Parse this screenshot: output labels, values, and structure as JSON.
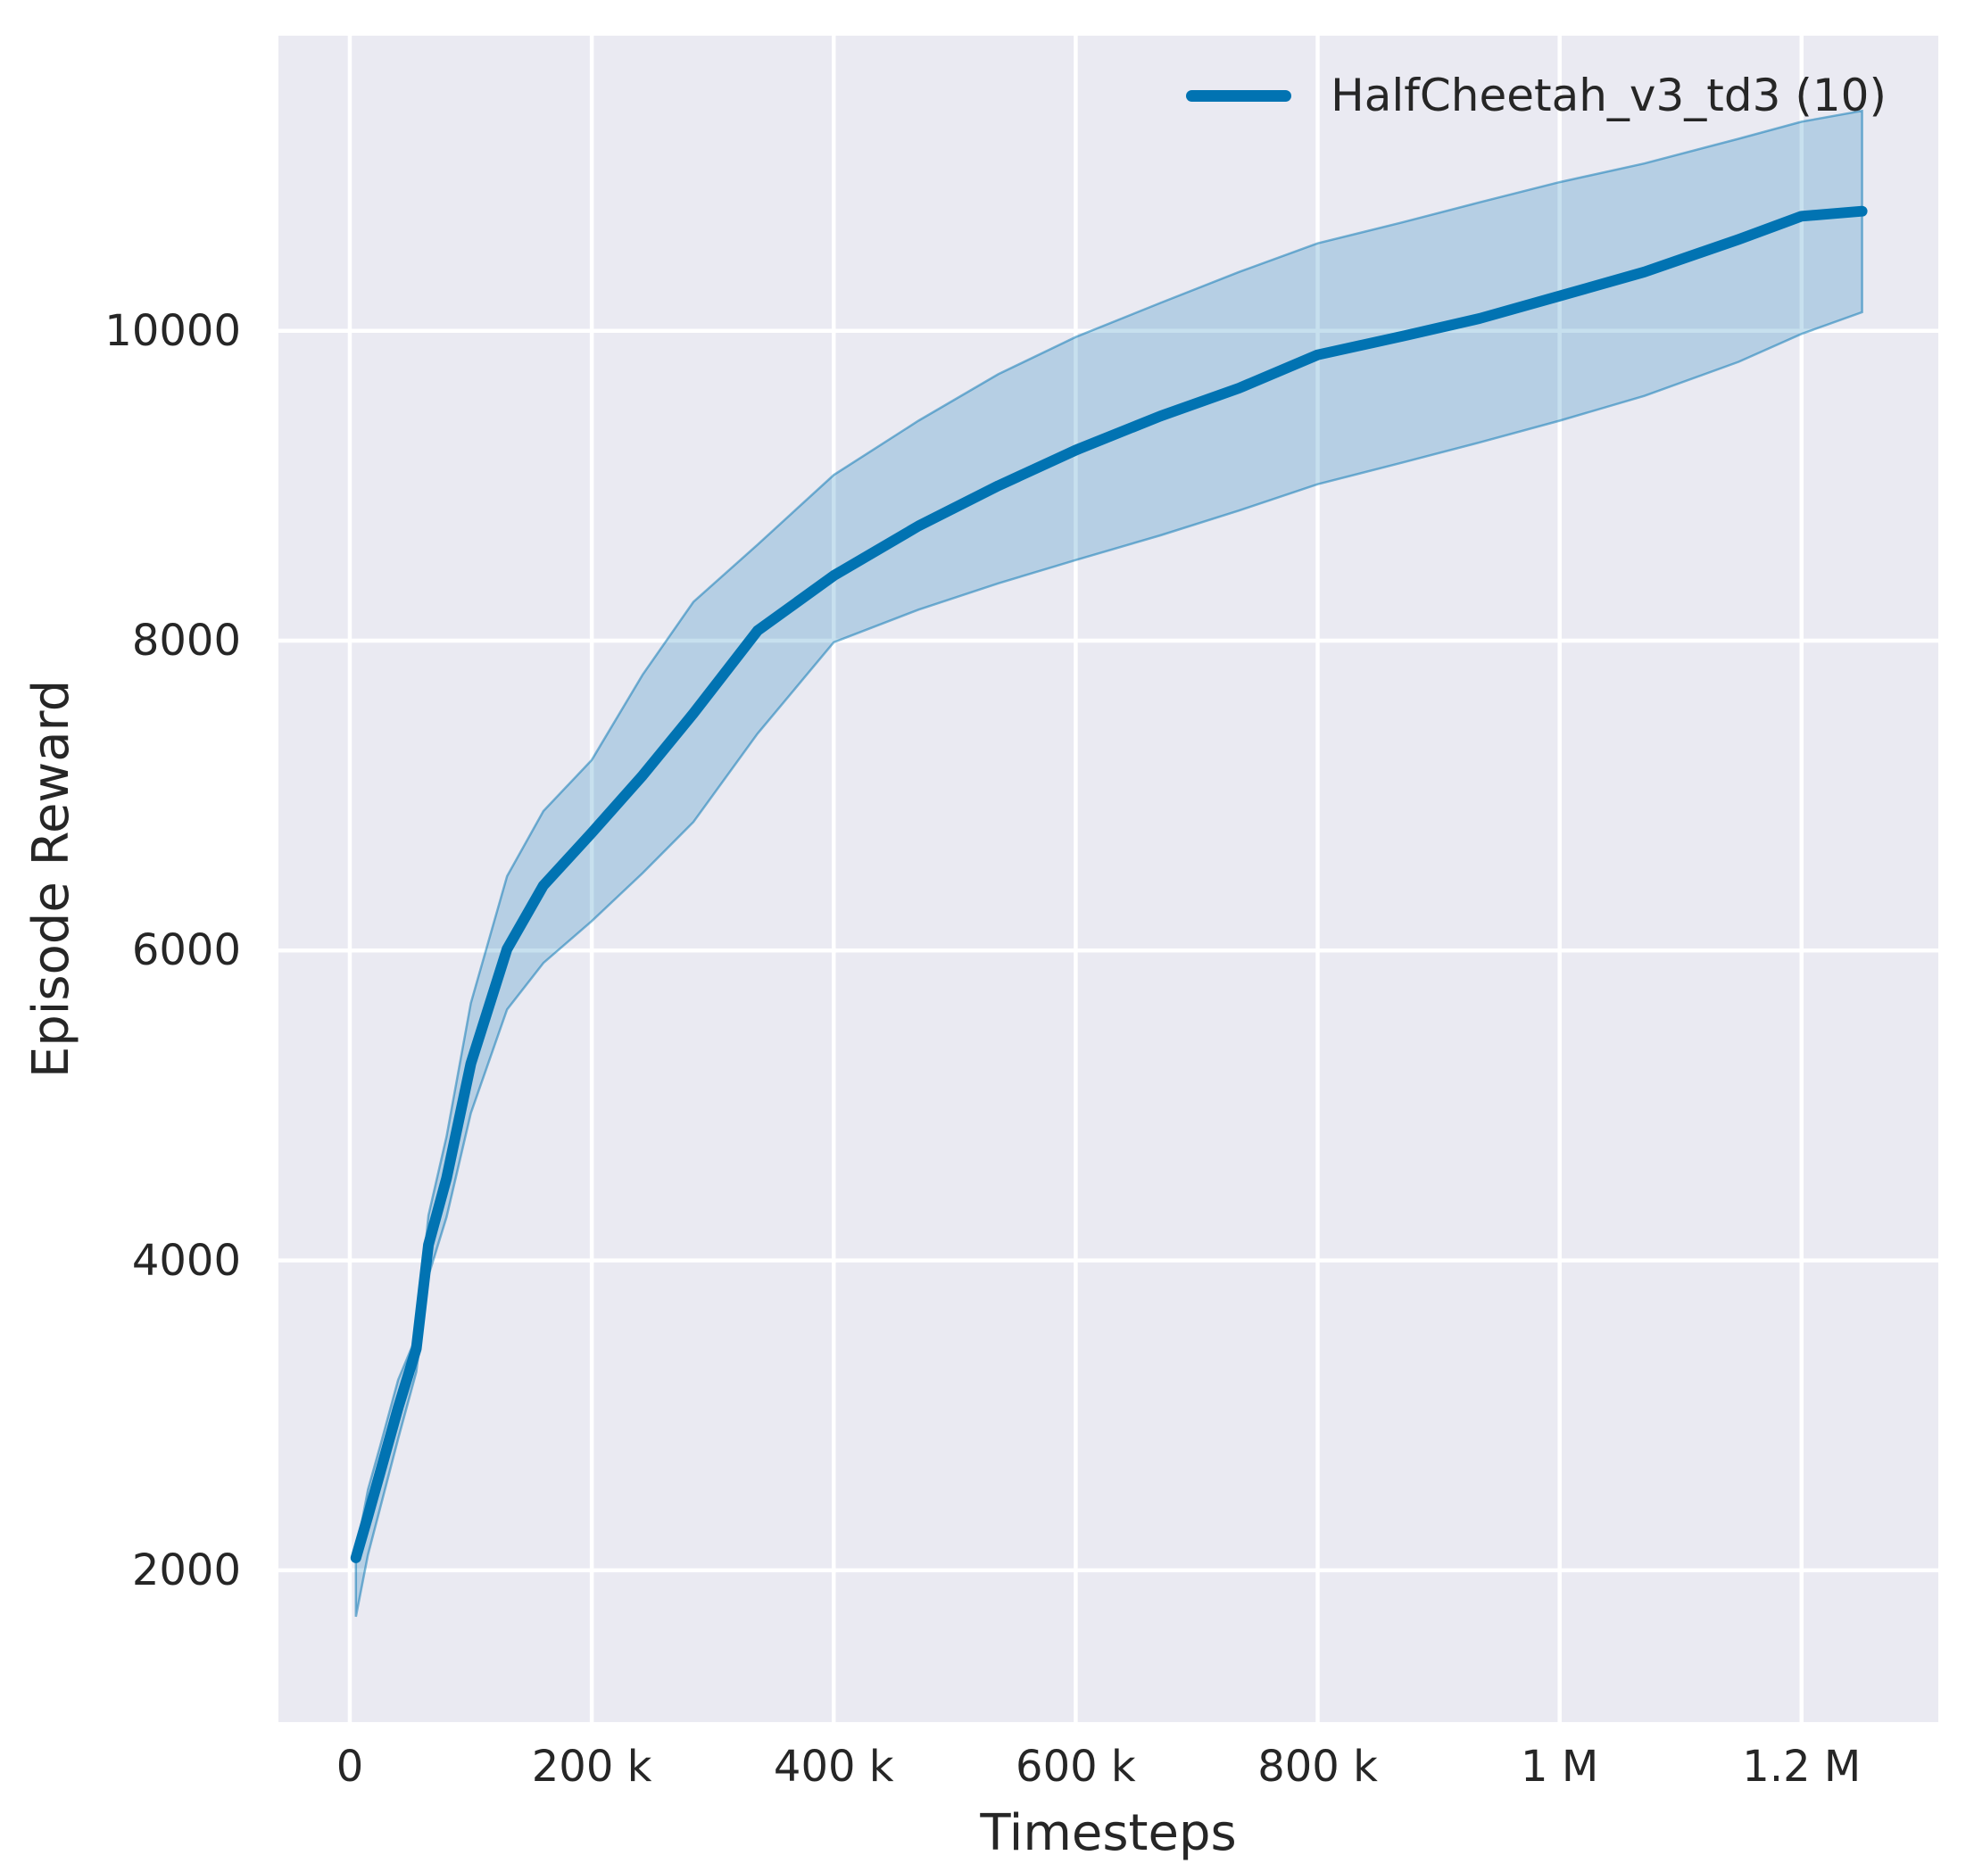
{
  "style": {
    "figure_bg": "#ffffff",
    "plot_bg": "#eaeaf2",
    "grid_color": "#ffffff",
    "text_color": "#262626",
    "accent": "#0173b2"
  },
  "chart_data": {
    "type": "line",
    "title": "",
    "xlabel": "Timesteps",
    "ylabel": "Episode Reward",
    "grid": true,
    "legend_position": "upper right",
    "xlim": [
      -59000,
      1313000
    ],
    "ylim": [
      1020,
      11905
    ],
    "x_ticks": [
      {
        "v": 0,
        "label": "0"
      },
      {
        "v": 200000,
        "label": "200 k"
      },
      {
        "v": 400000,
        "label": "400 k"
      },
      {
        "v": 600000,
        "label": "600 k"
      },
      {
        "v": 800000,
        "label": "800 k"
      },
      {
        "v": 1000000,
        "label": "1 M"
      },
      {
        "v": 1200000,
        "label": "1.2 M"
      }
    ],
    "y_ticks": [
      {
        "v": 2000,
        "label": "2000"
      },
      {
        "v": 4000,
        "label": "4000"
      },
      {
        "v": 6000,
        "label": "6000"
      },
      {
        "v": 8000,
        "label": "8000"
      },
      {
        "v": 10000,
        "label": "10000"
      }
    ],
    "series": [
      {
        "name": "HalfCheetah_v3_td3 (10)",
        "color": "#0173b2",
        "band_fill_opacity": 0.22,
        "line_width": 12,
        "x": [
          5000,
          15000,
          25000,
          40000,
          55000,
          65000,
          80000,
          100000,
          130000,
          160000,
          200000,
          242000,
          284000,
          337000,
          400000,
          470000,
          536000,
          600000,
          670000,
          735000,
          800000,
          870000,
          934000,
          1000000,
          1070000,
          1148000,
          1200000,
          1250000
        ],
        "mean": [
          2080,
          2350,
          2630,
          3050,
          3430,
          4100,
          4530,
          5270,
          6010,
          6420,
          6760,
          7130,
          7530,
          8065,
          8420,
          8740,
          9000,
          9230,
          9450,
          9630,
          9845,
          9965,
          10080,
          10225,
          10380,
          10590,
          10740,
          10772
        ],
        "band_low": [
          1700,
          2100,
          2400,
          2850,
          3280,
          3900,
          4280,
          4950,
          5620,
          5920,
          6190,
          6500,
          6830,
          7400,
          7990,
          8200,
          8370,
          8520,
          8680,
          8840,
          9010,
          9150,
          9280,
          9420,
          9580,
          9800,
          9980,
          10120
        ],
        "band_high": [
          2110,
          2520,
          2800,
          3230,
          3510,
          4290,
          4800,
          5660,
          6480,
          6900,
          7230,
          7780,
          8250,
          8620,
          9070,
          9420,
          9720,
          9960,
          10180,
          10380,
          10565,
          10700,
          10830,
          10960,
          11080,
          11240,
          11350,
          11420
        ]
      }
    ]
  }
}
